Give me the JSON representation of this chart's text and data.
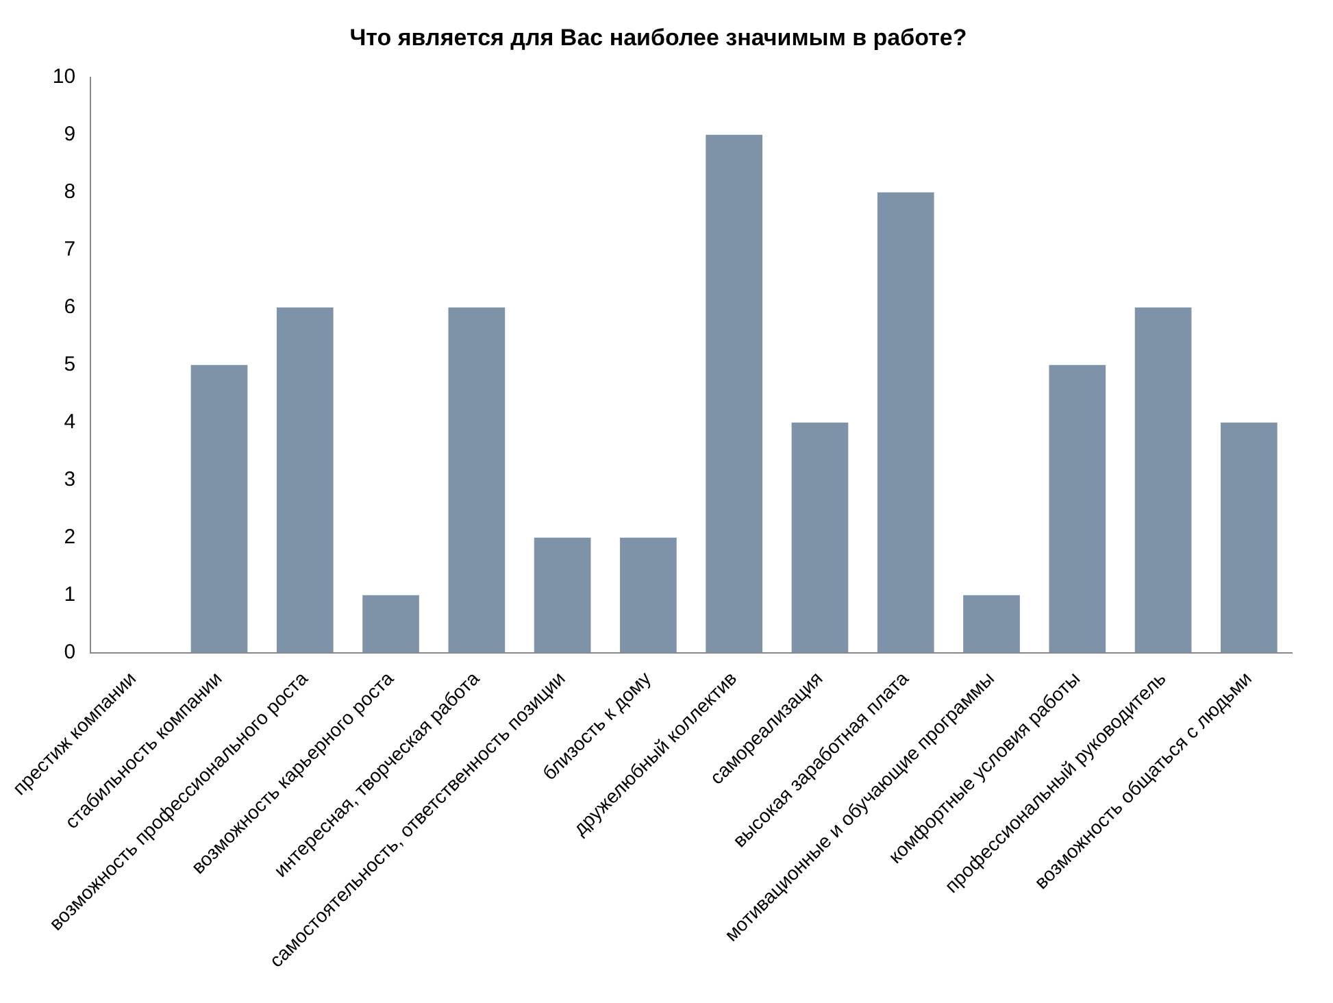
{
  "chart_data": {
    "type": "bar",
    "title": "Что является для Вас наиболее значимым в работе?",
    "categories": [
      "престиж компании",
      "стабильность компании",
      "возможность профессионального роста",
      "возможность карьерного роста",
      "интересная, творческая работа",
      "самостоятельность, ответственность позиции",
      "близость к дому",
      "дружелюбный коллектив",
      "самореализация",
      "высокая заработная плата",
      "мотивационные и обучающие программы",
      "комфортные условия работы",
      "профессиональный руководитель",
      "возможность общаться с людьми"
    ],
    "values": [
      0,
      5,
      6,
      1,
      6,
      2,
      2,
      9,
      4,
      8,
      1,
      5,
      6,
      4
    ],
    "color": "#7f93a8",
    "ylim": [
      0,
      10
    ],
    "yticks": [
      0,
      1,
      2,
      3,
      4,
      5,
      6,
      7,
      8,
      9,
      10
    ],
    "grid": false,
    "legend": false
  }
}
